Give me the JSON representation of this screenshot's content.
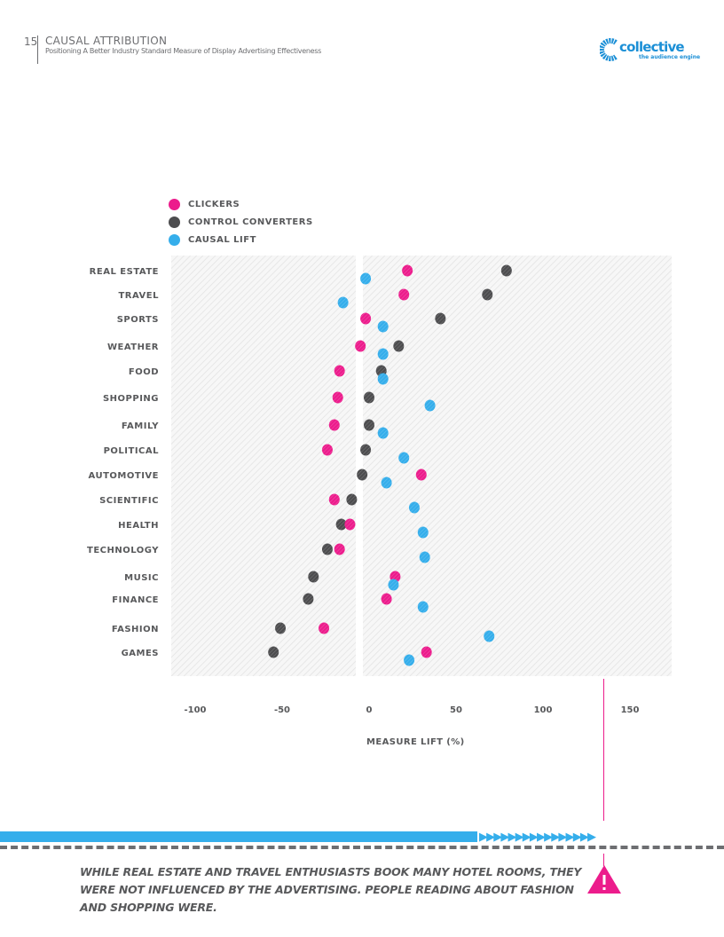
{
  "header": {
    "page_number": "15",
    "title": "CAUSAL ATTRIBUTION",
    "subtitle": "Positioning A Better Industry Standard Measure of Display Advertising Effectiveness"
  },
  "logo": {
    "name": "collective",
    "tagline": "the audience engine"
  },
  "callout": {
    "text": "WHILE REAL ESTATE AND TRAVEL ENTHUSIASTS BOOK MANY HOTEL ROOMS, THEY WERE NOT INFLUENCED BY THE ADVERTISING.  PEOPLE READING ABOUT FASHION AND SHOPPING WERE.",
    "icon": "warning-icon",
    "accent": "#ec1c8c"
  },
  "chart_data": {
    "type": "scatter",
    "title": "",
    "xlabel": "MEASURE LIFT (%)",
    "ylabel": "",
    "xlim": [
      -100,
      175
    ],
    "xticks": [
      -100,
      -50,
      0,
      50,
      100,
      150
    ],
    "xtick_labels": [
      "-100",
      "-50",
      "0",
      "50",
      "100",
      "150"
    ],
    "legend_position": "top-left",
    "categories": [
      "REAL ESTATE",
      "TRAVEL",
      "SPORTS",
      "WEATHER",
      "FOOD",
      "SHOPPING",
      "FAMILY",
      "POLITICAL",
      "AUTOMOTIVE",
      "SCIENTIFIC",
      "HEALTH",
      "TECHNOLOGY",
      "MUSIC",
      "FINANCE",
      "FASHION",
      "GAMES"
    ],
    "series": [
      {
        "name": "CLICKERS",
        "color": "#ec1c8c",
        "values": [
          22,
          20,
          -2,
          -5,
          -17,
          -18,
          -20,
          -24,
          30,
          -20,
          -11,
          -17,
          15,
          10,
          -26,
          33
        ]
      },
      {
        "name": "CONTROL CONVERTERS",
        "color": "#4d4d4f",
        "values": [
          79,
          68,
          41,
          17,
          7,
          0,
          0,
          -2,
          -4,
          -10,
          -16,
          -24,
          -32,
          -35,
          -51,
          -55
        ]
      },
      {
        "name": "CAUSAL LIFT",
        "color": "#35aeeb",
        "values": [
          -2,
          -15,
          8,
          8,
          8,
          35,
          8,
          20,
          10,
          26,
          31,
          32,
          14,
          31,
          69,
          23
        ]
      }
    ]
  }
}
